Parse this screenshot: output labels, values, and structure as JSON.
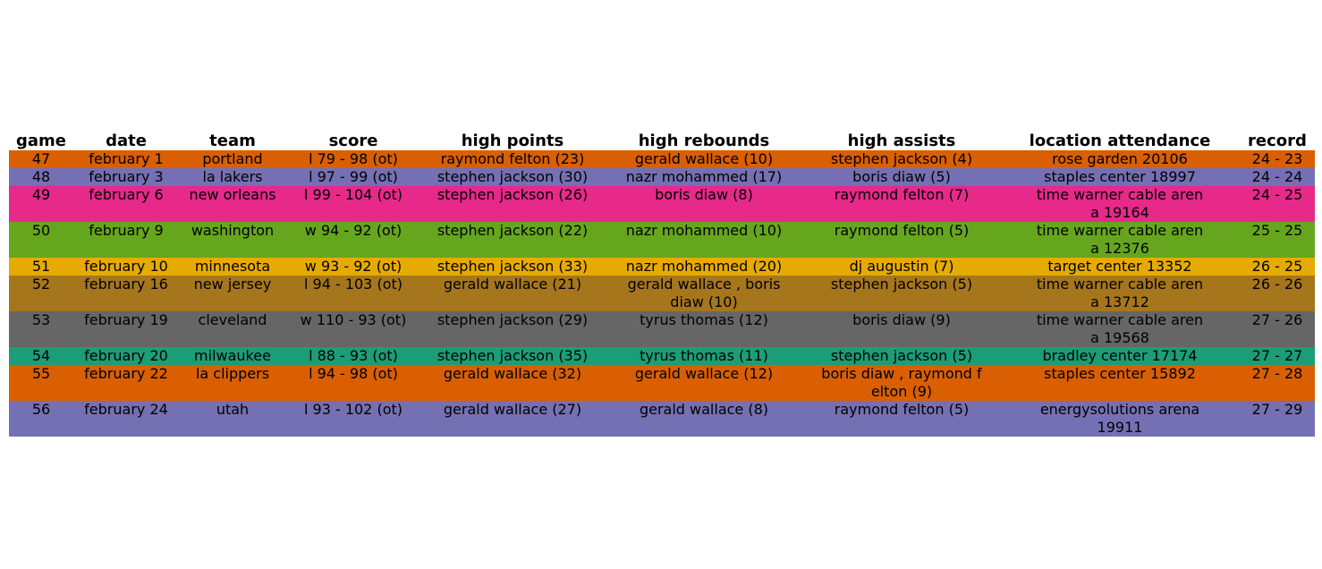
{
  "chart_data": {
    "type": "table",
    "columns": [
      "game",
      "date",
      "team",
      "score",
      "high points",
      "high rebounds",
      "high assists",
      "location attendance",
      "record"
    ],
    "rows": [
      {
        "color": "#d95f02",
        "lines": 1,
        "cells": [
          "47",
          "february 1",
          "portland",
          "l 79 - 98 (ot)",
          "raymond felton (23)",
          "gerald wallace (10)",
          "stephen jackson (4)",
          "rose garden 20106",
          "24 - 23"
        ]
      },
      {
        "color": "#7570b3",
        "lines": 1,
        "cells": [
          "48",
          "february 3",
          "la lakers",
          "l 97 - 99 (ot)",
          "stephen jackson (30)",
          "nazr mohammed (17)",
          "boris diaw (5)",
          "staples center 18997",
          "24 - 24"
        ]
      },
      {
        "color": "#e7298a",
        "lines": 2,
        "cells": [
          "49",
          "february 6",
          "new orleans",
          "l 99 - 104 (ot)",
          "stephen jackson (26)",
          "boris diaw (8)",
          "raymond felton (7)",
          "time warner cable aren\na 19164",
          "24 - 25"
        ]
      },
      {
        "color": "#66a61e",
        "lines": 2,
        "cells": [
          "50",
          "february 9",
          "washington",
          "w 94 - 92 (ot)",
          "stephen jackson (22)",
          "nazr mohammed (10)",
          "raymond felton (5)",
          "time warner cable aren\na 12376",
          "25 - 25"
        ]
      },
      {
        "color": "#e6ab02",
        "lines": 1,
        "cells": [
          "51",
          "february 10",
          "minnesota",
          "w 93 - 92 (ot)",
          "stephen jackson (33)",
          "nazr mohammed (20)",
          "dj augustin (7)",
          "target center 13352",
          "26 - 25"
        ]
      },
      {
        "color": "#a6761d",
        "lines": 2,
        "cells": [
          "52",
          "february 16",
          "new jersey",
          "l 94 - 103 (ot)",
          "gerald wallace (21)",
          "gerald wallace , boris\ndiaw (10)",
          "stephen jackson (5)",
          "time warner cable aren\na 13712",
          "26 - 26"
        ]
      },
      {
        "color": "#666666",
        "lines": 2,
        "cells": [
          "53",
          "february 19",
          "cleveland",
          "w 110 - 93 (ot)",
          "stephen jackson (29)",
          "tyrus thomas (12)",
          "boris diaw (9)",
          "time warner cable aren\na 19568",
          "27 - 26"
        ]
      },
      {
        "color": "#1b9e77",
        "lines": 1,
        "cells": [
          "54",
          "february 20",
          "milwaukee",
          "l 88 - 93 (ot)",
          "stephen jackson (35)",
          "tyrus thomas (11)",
          "stephen jackson (5)",
          "bradley center 17174",
          "27 - 27"
        ]
      },
      {
        "color": "#d95f02",
        "lines": 2,
        "cells": [
          "55",
          "february 22",
          "la clippers",
          "l 94 - 98 (ot)",
          "gerald wallace (32)",
          "gerald wallace (12)",
          "boris diaw , raymond f\nelton (9)",
          "staples center 15892",
          "27 - 28"
        ]
      },
      {
        "color": "#7570b3",
        "lines": 2,
        "cells": [
          "56",
          "february 24",
          "utah",
          "l 93 - 102 (ot)",
          "gerald wallace (27)",
          "gerald wallace (8)",
          "raymond felton (5)",
          "energysolutions arena\n19911",
          "27 - 29"
        ]
      }
    ]
  }
}
